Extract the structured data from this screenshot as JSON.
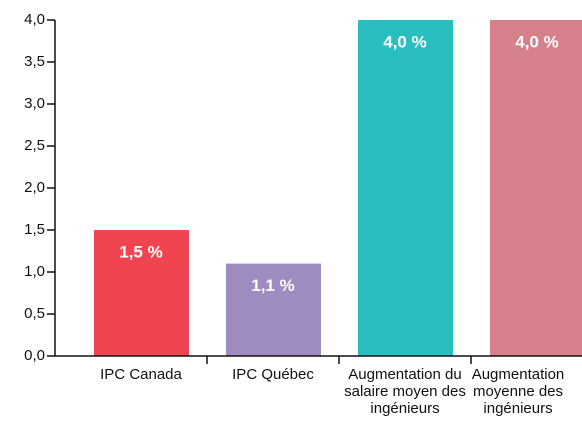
{
  "chart_data": {
    "type": "bar",
    "categories": [
      "IPC Canada",
      "IPC Québec",
      "Augmentation du salaire moyen des ingénieurs",
      "Augmentation moyenne des ingénieurs"
    ],
    "values": [
      1.5,
      1.1,
      4.0,
      4.0
    ],
    "value_labels": [
      "1,5 %",
      "1,1 %",
      "4,0 %",
      "4,0 %"
    ],
    "colors": [
      "#f04550",
      "#9e8bc0",
      "#2abfbf",
      "#d6808b"
    ],
    "ylim": [
      0,
      4
    ],
    "yticks": [
      {
        "value": 0,
        "label": "0,0"
      },
      {
        "value": 0.5,
        "label": "0,5"
      },
      {
        "value": 1,
        "label": "1,0"
      },
      {
        "value": 1.5,
        "label": "1,5"
      },
      {
        "value": 2,
        "label": "2,0"
      },
      {
        "value": 2.5,
        "label": "2,5"
      },
      {
        "value": 3,
        "label": "3,0"
      },
      {
        "value": 3.5,
        "label": "3,5"
      },
      {
        "value": 4,
        "label": "4,0"
      }
    ]
  }
}
